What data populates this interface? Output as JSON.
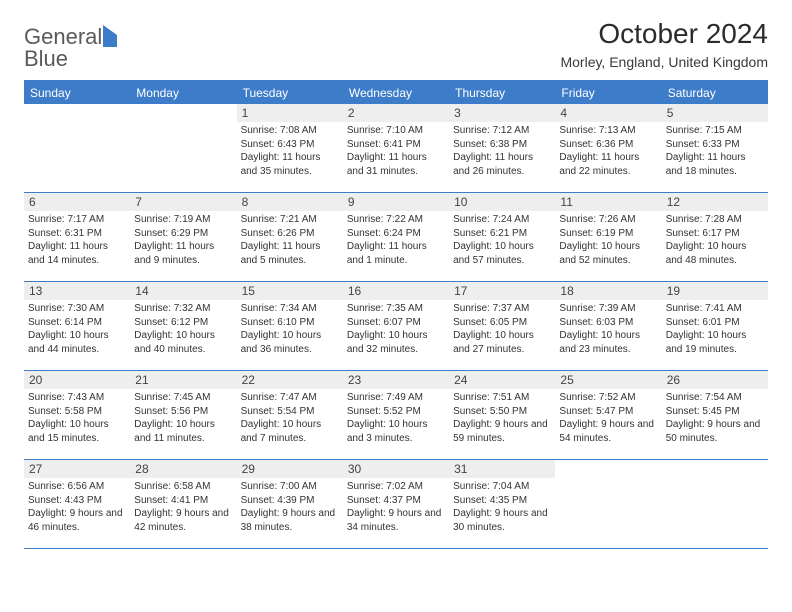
{
  "logo": {
    "word1": "General",
    "word2": "Blue"
  },
  "title": "October 2024",
  "location": "Morley, England, United Kingdom",
  "colors": {
    "accent": "#3d7cc9",
    "header_bg": "#3d7cc9",
    "header_text": "#ffffff",
    "daynum_bg": "#eeeeee",
    "text": "#333333",
    "background": "#ffffff"
  },
  "day_headers": [
    "Sunday",
    "Monday",
    "Tuesday",
    "Wednesday",
    "Thursday",
    "Friday",
    "Saturday"
  ],
  "weeks": [
    [
      null,
      null,
      {
        "n": "1",
        "sunrise": "Sunrise: 7:08 AM",
        "sunset": "Sunset: 6:43 PM",
        "daylight": "Daylight: 11 hours and 35 minutes."
      },
      {
        "n": "2",
        "sunrise": "Sunrise: 7:10 AM",
        "sunset": "Sunset: 6:41 PM",
        "daylight": "Daylight: 11 hours and 31 minutes."
      },
      {
        "n": "3",
        "sunrise": "Sunrise: 7:12 AM",
        "sunset": "Sunset: 6:38 PM",
        "daylight": "Daylight: 11 hours and 26 minutes."
      },
      {
        "n": "4",
        "sunrise": "Sunrise: 7:13 AM",
        "sunset": "Sunset: 6:36 PM",
        "daylight": "Daylight: 11 hours and 22 minutes."
      },
      {
        "n": "5",
        "sunrise": "Sunrise: 7:15 AM",
        "sunset": "Sunset: 6:33 PM",
        "daylight": "Daylight: 11 hours and 18 minutes."
      }
    ],
    [
      {
        "n": "6",
        "sunrise": "Sunrise: 7:17 AM",
        "sunset": "Sunset: 6:31 PM",
        "daylight": "Daylight: 11 hours and 14 minutes."
      },
      {
        "n": "7",
        "sunrise": "Sunrise: 7:19 AM",
        "sunset": "Sunset: 6:29 PM",
        "daylight": "Daylight: 11 hours and 9 minutes."
      },
      {
        "n": "8",
        "sunrise": "Sunrise: 7:21 AM",
        "sunset": "Sunset: 6:26 PM",
        "daylight": "Daylight: 11 hours and 5 minutes."
      },
      {
        "n": "9",
        "sunrise": "Sunrise: 7:22 AM",
        "sunset": "Sunset: 6:24 PM",
        "daylight": "Daylight: 11 hours and 1 minute."
      },
      {
        "n": "10",
        "sunrise": "Sunrise: 7:24 AM",
        "sunset": "Sunset: 6:21 PM",
        "daylight": "Daylight: 10 hours and 57 minutes."
      },
      {
        "n": "11",
        "sunrise": "Sunrise: 7:26 AM",
        "sunset": "Sunset: 6:19 PM",
        "daylight": "Daylight: 10 hours and 52 minutes."
      },
      {
        "n": "12",
        "sunrise": "Sunrise: 7:28 AM",
        "sunset": "Sunset: 6:17 PM",
        "daylight": "Daylight: 10 hours and 48 minutes."
      }
    ],
    [
      {
        "n": "13",
        "sunrise": "Sunrise: 7:30 AM",
        "sunset": "Sunset: 6:14 PM",
        "daylight": "Daylight: 10 hours and 44 minutes."
      },
      {
        "n": "14",
        "sunrise": "Sunrise: 7:32 AM",
        "sunset": "Sunset: 6:12 PM",
        "daylight": "Daylight: 10 hours and 40 minutes."
      },
      {
        "n": "15",
        "sunrise": "Sunrise: 7:34 AM",
        "sunset": "Sunset: 6:10 PM",
        "daylight": "Daylight: 10 hours and 36 minutes."
      },
      {
        "n": "16",
        "sunrise": "Sunrise: 7:35 AM",
        "sunset": "Sunset: 6:07 PM",
        "daylight": "Daylight: 10 hours and 32 minutes."
      },
      {
        "n": "17",
        "sunrise": "Sunrise: 7:37 AM",
        "sunset": "Sunset: 6:05 PM",
        "daylight": "Daylight: 10 hours and 27 minutes."
      },
      {
        "n": "18",
        "sunrise": "Sunrise: 7:39 AM",
        "sunset": "Sunset: 6:03 PM",
        "daylight": "Daylight: 10 hours and 23 minutes."
      },
      {
        "n": "19",
        "sunrise": "Sunrise: 7:41 AM",
        "sunset": "Sunset: 6:01 PM",
        "daylight": "Daylight: 10 hours and 19 minutes."
      }
    ],
    [
      {
        "n": "20",
        "sunrise": "Sunrise: 7:43 AM",
        "sunset": "Sunset: 5:58 PM",
        "daylight": "Daylight: 10 hours and 15 minutes."
      },
      {
        "n": "21",
        "sunrise": "Sunrise: 7:45 AM",
        "sunset": "Sunset: 5:56 PM",
        "daylight": "Daylight: 10 hours and 11 minutes."
      },
      {
        "n": "22",
        "sunrise": "Sunrise: 7:47 AM",
        "sunset": "Sunset: 5:54 PM",
        "daylight": "Daylight: 10 hours and 7 minutes."
      },
      {
        "n": "23",
        "sunrise": "Sunrise: 7:49 AM",
        "sunset": "Sunset: 5:52 PM",
        "daylight": "Daylight: 10 hours and 3 minutes."
      },
      {
        "n": "24",
        "sunrise": "Sunrise: 7:51 AM",
        "sunset": "Sunset: 5:50 PM",
        "daylight": "Daylight: 9 hours and 59 minutes."
      },
      {
        "n": "25",
        "sunrise": "Sunrise: 7:52 AM",
        "sunset": "Sunset: 5:47 PM",
        "daylight": "Daylight: 9 hours and 54 minutes."
      },
      {
        "n": "26",
        "sunrise": "Sunrise: 7:54 AM",
        "sunset": "Sunset: 5:45 PM",
        "daylight": "Daylight: 9 hours and 50 minutes."
      }
    ],
    [
      {
        "n": "27",
        "sunrise": "Sunrise: 6:56 AM",
        "sunset": "Sunset: 4:43 PM",
        "daylight": "Daylight: 9 hours and 46 minutes."
      },
      {
        "n": "28",
        "sunrise": "Sunrise: 6:58 AM",
        "sunset": "Sunset: 4:41 PM",
        "daylight": "Daylight: 9 hours and 42 minutes."
      },
      {
        "n": "29",
        "sunrise": "Sunrise: 7:00 AM",
        "sunset": "Sunset: 4:39 PM",
        "daylight": "Daylight: 9 hours and 38 minutes."
      },
      {
        "n": "30",
        "sunrise": "Sunrise: 7:02 AM",
        "sunset": "Sunset: 4:37 PM",
        "daylight": "Daylight: 9 hours and 34 minutes."
      },
      {
        "n": "31",
        "sunrise": "Sunrise: 7:04 AM",
        "sunset": "Sunset: 4:35 PM",
        "daylight": "Daylight: 9 hours and 30 minutes."
      },
      null,
      null
    ]
  ]
}
